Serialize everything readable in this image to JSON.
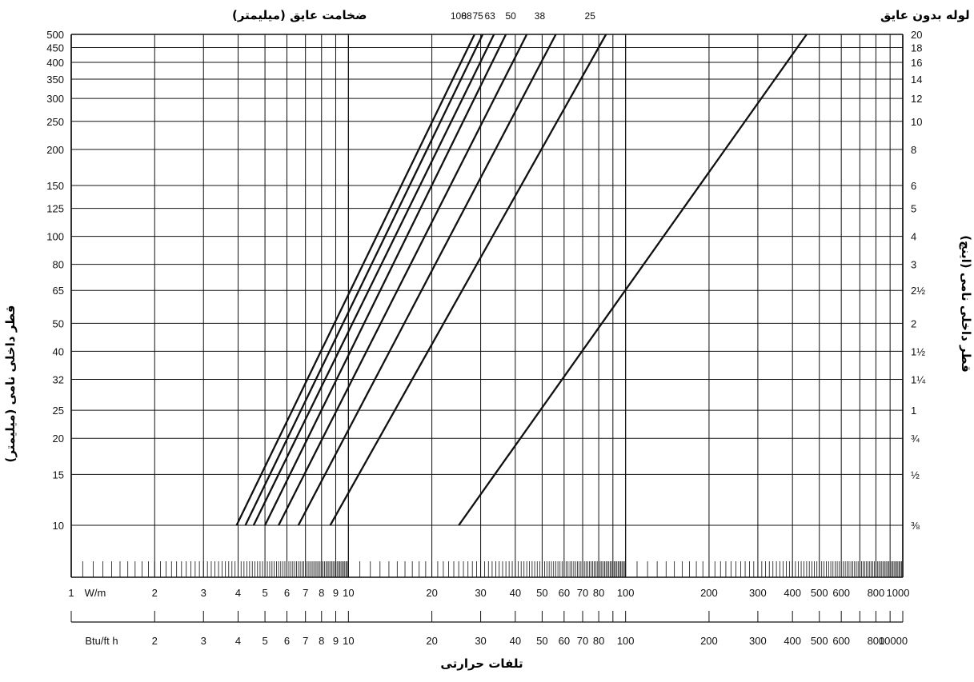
{
  "chart_data": {
    "type": "line",
    "title_left": "ضخامت عایق (میلیمتر)",
    "title_right": "لوله بدون عایق",
    "xlabel": "تلفات حرارتی",
    "ylabel_left": "قطر داخلی نامی (میلیمتر)",
    "ylabel_right": "قطر داخلی نامی (اینچ)",
    "x_scale": "log",
    "y_scale": "log",
    "xlim": [
      1,
      1000
    ],
    "ylim": [
      10,
      500
    ],
    "grid": true,
    "x_unit_primary": "W/m",
    "x_unit_secondary": "Btu/ft h",
    "x_ticks": [
      "1",
      "2",
      "3",
      "4",
      "5",
      "6",
      "7",
      "8",
      "9",
      "10",
      "20",
      "30",
      "40",
      "50",
      "60",
      "70",
      "80",
      "100",
      "200",
      "300",
      "400",
      "500",
      "600",
      "800",
      "1000"
    ],
    "x_ticks_secondary": [
      "2",
      "3",
      "4",
      "5",
      "6",
      "7",
      "8",
      "9",
      "10",
      "20",
      "30",
      "40",
      "50",
      "60",
      "70",
      "80",
      "100",
      "200",
      "300",
      "400",
      "500",
      "600",
      "800",
      "10000"
    ],
    "y_ticks_left": [
      "500",
      "450",
      "400",
      "350",
      "300",
      "250",
      "200",
      "150",
      "125",
      "100",
      "80",
      "65",
      "50",
      "40",
      "32",
      "25",
      "20",
      "15",
      "10"
    ],
    "y_ticks_right": [
      "20",
      "18",
      "16",
      "14",
      "12",
      "10",
      "8",
      "6",
      "5",
      "4",
      "3",
      "2½",
      "2",
      "1½",
      "1¼",
      "1",
      "¾",
      "½",
      "⅜"
    ],
    "series_top_labels": [
      "100",
      "88",
      "75",
      "63",
      "50",
      "38",
      "25"
    ],
    "series": [
      {
        "name": "100",
        "points": [
          [
            3.95,
            10
          ],
          [
            28.5,
            500
          ]
        ]
      },
      {
        "name": "88",
        "points": [
          [
            4.25,
            10
          ],
          [
            30.5,
            500
          ]
        ]
      },
      {
        "name": "75",
        "points": [
          [
            4.55,
            10
          ],
          [
            33.5,
            500
          ]
        ]
      },
      {
        "name": "63",
        "points": [
          [
            5.0,
            10
          ],
          [
            37.0,
            500
          ]
        ]
      },
      {
        "name": "50",
        "points": [
          [
            5.6,
            10
          ],
          [
            44.0,
            500
          ]
        ]
      },
      {
        "name": "38",
        "points": [
          [
            6.6,
            10
          ],
          [
            56.0,
            500
          ]
        ]
      },
      {
        "name": "25",
        "points": [
          [
            8.6,
            10
          ],
          [
            85.0,
            500
          ]
        ]
      },
      {
        "name": "لوله بدون عایق",
        "points": [
          [
            25,
            10
          ],
          [
            450,
            500
          ]
        ]
      }
    ]
  }
}
